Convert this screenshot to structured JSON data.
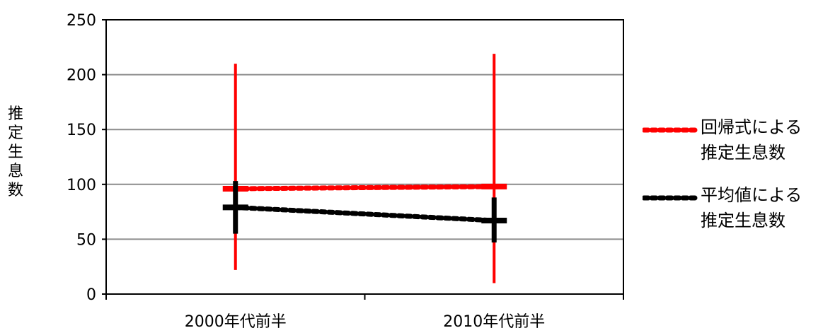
{
  "chart_data": {
    "type": "line",
    "categories": [
      "2000年代前半",
      "2010年代前半"
    ],
    "ylabel": "推定生息数",
    "ylim": [
      0,
      250
    ],
    "yticks": [
      0,
      50,
      100,
      150,
      200,
      250
    ],
    "grid": true,
    "legend_position": "right",
    "series": [
      {
        "name": "回帰式による\n推定生息数",
        "color": "#ff0000",
        "style": "dotted",
        "values": [
          96,
          98
        ],
        "error_low": [
          22,
          10
        ],
        "error_high": [
          210,
          219
        ]
      },
      {
        "name": "平均値による\n推定生息数",
        "color": "#000000",
        "style": "dotted",
        "values": [
          79,
          67
        ],
        "error_low": [
          55,
          47
        ],
        "error_high": [
          103,
          88
        ]
      }
    ]
  }
}
